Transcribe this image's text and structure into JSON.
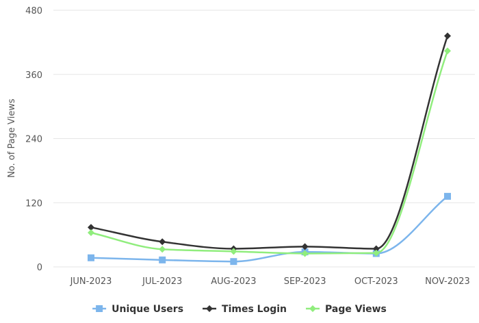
{
  "chart_data": {
    "type": "line",
    "smooth": true,
    "title": "",
    "xlabel": "",
    "ylabel": "No. of Page Views",
    "categories": [
      "JUN-2023",
      "JUL-2023",
      "AUG-2023",
      "SEP-2023",
      "OCT-2023",
      "NOV-2023"
    ],
    "ylim": [
      0,
      480
    ],
    "yticks": [
      0,
      120,
      240,
      360,
      480
    ],
    "grid": true,
    "legend": "bottom-center",
    "series": [
      {
        "name": "Unique Users",
        "color": "#7cb5ec",
        "marker": "square",
        "values": [
          17,
          13,
          10,
          28,
          25,
          132
        ]
      },
      {
        "name": "Times Login",
        "color": "#333333",
        "marker": "diamond",
        "values": [
          74,
          47,
          34,
          38,
          34,
          432
        ]
      },
      {
        "name": "Page Views",
        "color": "#90ed7d",
        "marker": "diamond",
        "values": [
          64,
          33,
          29,
          25,
          26,
          404
        ]
      }
    ]
  }
}
